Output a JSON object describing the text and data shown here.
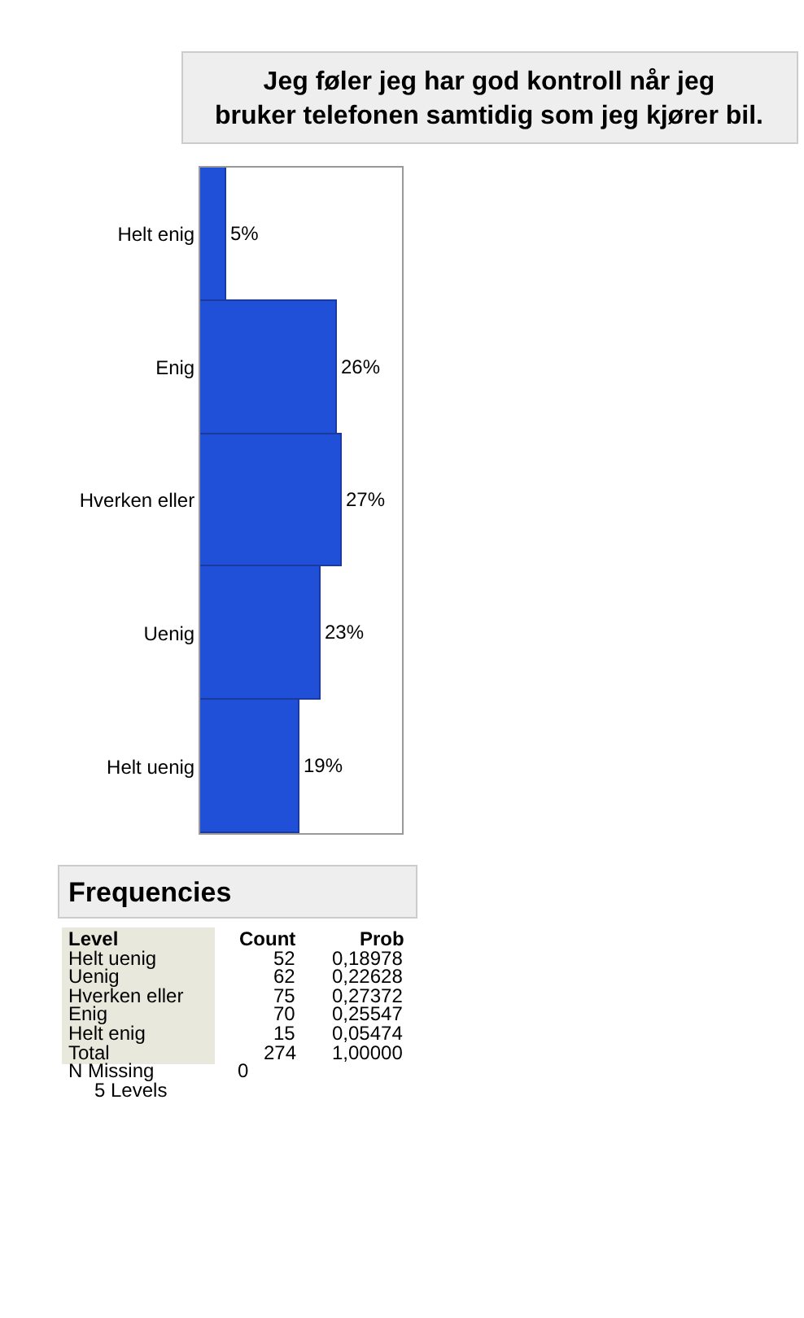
{
  "chart_data": {
    "type": "bar",
    "orientation": "horizontal",
    "title": "Jeg føler jeg har god kontroll når jeg\nbruker telefonen samtidig som jeg kjører bil.",
    "categories": [
      "Helt enig",
      "Enig",
      "Hverken eller",
      "Uenig",
      "Helt uenig"
    ],
    "values": [
      5,
      26,
      27,
      23,
      19
    ],
    "value_labels": [
      "5%",
      "26%",
      "27%",
      "23%",
      "19%"
    ],
    "color": "#2150d8",
    "annotations": [
      "Frequencies",
      "Level",
      "Count",
      "Prob",
      "Helt uenig",
      "52",
      "0,18978",
      "Uenig",
      "62",
      "0,22628",
      "Hverken eller",
      "75",
      "0,27372",
      "Enig",
      "70",
      "0,25547",
      "Helt enig",
      "15",
      "0,05474",
      "Total",
      "274",
      "1,00000",
      "N Missing",
      "0",
      "5 Levels"
    ]
  }
}
